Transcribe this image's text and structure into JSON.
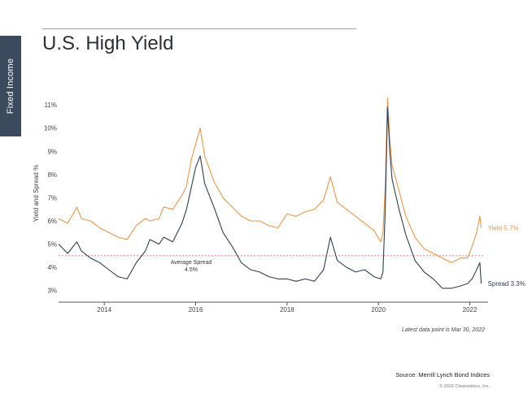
{
  "side_tab": {
    "label": "Fixed Income"
  },
  "title": "U.S. High Yield",
  "footer": {
    "note": "Latest data point is Mar 30, 2022",
    "source": "Source: Merrill Lynch Bond Indices",
    "copyright": "© 2022 Clearnomics, Inc."
  },
  "colors": {
    "yield": "#e8964a",
    "spread": "#2f3e51",
    "average": "#e05a5a"
  },
  "chart_data": {
    "type": "line",
    "title": "U.S. High Yield",
    "xlabel": "",
    "ylabel": "Yield and Spread %",
    "xlim": [
      2013.0,
      2022.4
    ],
    "ylim": [
      2.5,
      11.6
    ],
    "x_ticks": [
      {
        "x": 2014,
        "label": "2014"
      },
      {
        "x": 2016,
        "label": "2016"
      },
      {
        "x": 2018,
        "label": "2018"
      },
      {
        "x": 2020,
        "label": "2020"
      },
      {
        "x": 2022,
        "label": "2022"
      }
    ],
    "y_ticks": [
      {
        "y": 3,
        "label": "3%"
      },
      {
        "y": 4,
        "label": "4%"
      },
      {
        "y": 5,
        "label": "5%"
      },
      {
        "y": 6,
        "label": "6%"
      },
      {
        "y": 7,
        "label": "7%"
      },
      {
        "y": 8,
        "label": "8%"
      },
      {
        "y": 9,
        "label": "9%"
      },
      {
        "y": 10,
        "label": "10%"
      },
      {
        "y": 11,
        "label": "11%"
      }
    ],
    "reference_line": {
      "y": 4.5,
      "label_line1": "Average Spread",
      "label_line2": "4.5%"
    },
    "series": [
      {
        "name": "Yield",
        "end_label": "Yield 5.7%",
        "points": [
          [
            2013.0,
            6.1
          ],
          [
            2013.2,
            5.9
          ],
          [
            2013.4,
            6.6
          ],
          [
            2013.5,
            6.1
          ],
          [
            2013.7,
            6.0
          ],
          [
            2013.9,
            5.7
          ],
          [
            2014.1,
            5.5
          ],
          [
            2014.3,
            5.3
          ],
          [
            2014.5,
            5.2
          ],
          [
            2014.7,
            5.8
          ],
          [
            2014.9,
            6.1
          ],
          [
            2015.0,
            6.0
          ],
          [
            2015.2,
            6.1
          ],
          [
            2015.3,
            6.6
          ],
          [
            2015.5,
            6.5
          ],
          [
            2015.7,
            7.1
          ],
          [
            2015.8,
            7.5
          ],
          [
            2015.9,
            8.6
          ],
          [
            2016.0,
            9.3
          ],
          [
            2016.1,
            10.0
          ],
          [
            2016.2,
            8.8
          ],
          [
            2016.4,
            7.7
          ],
          [
            2016.6,
            7.0
          ],
          [
            2016.8,
            6.6
          ],
          [
            2017.0,
            6.2
          ],
          [
            2017.2,
            6.0
          ],
          [
            2017.4,
            6.0
          ],
          [
            2017.6,
            5.8
          ],
          [
            2017.8,
            5.7
          ],
          [
            2017.9,
            6.0
          ],
          [
            2018.0,
            6.3
          ],
          [
            2018.2,
            6.2
          ],
          [
            2018.4,
            6.4
          ],
          [
            2018.6,
            6.5
          ],
          [
            2018.8,
            6.9
          ],
          [
            2018.95,
            7.9
          ],
          [
            2019.1,
            6.8
          ],
          [
            2019.3,
            6.5
          ],
          [
            2019.5,
            6.2
          ],
          [
            2019.7,
            5.9
          ],
          [
            2019.9,
            5.6
          ],
          [
            2020.05,
            5.1
          ],
          [
            2020.1,
            5.5
          ],
          [
            2020.15,
            7.5
          ],
          [
            2020.2,
            11.3
          ],
          [
            2020.25,
            9.5
          ],
          [
            2020.3,
            8.4
          ],
          [
            2020.45,
            7.3
          ],
          [
            2020.6,
            6.2
          ],
          [
            2020.8,
            5.3
          ],
          [
            2021.0,
            4.8
          ],
          [
            2021.2,
            4.6
          ],
          [
            2021.4,
            4.4
          ],
          [
            2021.6,
            4.2
          ],
          [
            2021.8,
            4.4
          ],
          [
            2021.95,
            4.4
          ],
          [
            2022.05,
            4.9
          ],
          [
            2022.15,
            5.5
          ],
          [
            2022.22,
            6.2
          ],
          [
            2022.25,
            5.7
          ]
        ]
      },
      {
        "name": "Spread",
        "end_label": "Spread 3.3%",
        "points": [
          [
            2013.0,
            5.0
          ],
          [
            2013.2,
            4.6
          ],
          [
            2013.4,
            5.1
          ],
          [
            2013.5,
            4.7
          ],
          [
            2013.7,
            4.4
          ],
          [
            2013.9,
            4.2
          ],
          [
            2014.1,
            3.9
          ],
          [
            2014.3,
            3.6
          ],
          [
            2014.5,
            3.5
          ],
          [
            2014.7,
            4.2
          ],
          [
            2014.9,
            4.7
          ],
          [
            2015.0,
            5.2
          ],
          [
            2015.2,
            5.0
          ],
          [
            2015.3,
            5.3
          ],
          [
            2015.5,
            5.1
          ],
          [
            2015.7,
            5.9
          ],
          [
            2015.8,
            6.5
          ],
          [
            2015.9,
            7.4
          ],
          [
            2016.0,
            8.3
          ],
          [
            2016.1,
            8.8
          ],
          [
            2016.2,
            7.6
          ],
          [
            2016.4,
            6.6
          ],
          [
            2016.6,
            5.5
          ],
          [
            2016.8,
            4.9
          ],
          [
            2017.0,
            4.2
          ],
          [
            2017.2,
            3.9
          ],
          [
            2017.4,
            3.8
          ],
          [
            2017.6,
            3.6
          ],
          [
            2017.8,
            3.5
          ],
          [
            2017.9,
            3.5
          ],
          [
            2018.0,
            3.5
          ],
          [
            2018.2,
            3.4
          ],
          [
            2018.4,
            3.5
          ],
          [
            2018.6,
            3.4
          ],
          [
            2018.8,
            3.9
          ],
          [
            2018.95,
            5.3
          ],
          [
            2019.1,
            4.3
          ],
          [
            2019.3,
            4.0
          ],
          [
            2019.5,
            3.8
          ],
          [
            2019.7,
            3.9
          ],
          [
            2019.9,
            3.6
          ],
          [
            2020.05,
            3.5
          ],
          [
            2020.1,
            3.8
          ],
          [
            2020.15,
            6.5
          ],
          [
            2020.2,
            10.9
          ],
          [
            2020.25,
            9.0
          ],
          [
            2020.3,
            7.8
          ],
          [
            2020.45,
            6.5
          ],
          [
            2020.6,
            5.4
          ],
          [
            2020.8,
            4.3
          ],
          [
            2021.0,
            3.8
          ],
          [
            2021.2,
            3.5
          ],
          [
            2021.4,
            3.1
          ],
          [
            2021.6,
            3.1
          ],
          [
            2021.8,
            3.2
          ],
          [
            2021.95,
            3.3
          ],
          [
            2022.05,
            3.5
          ],
          [
            2022.15,
            3.9
          ],
          [
            2022.22,
            4.2
          ],
          [
            2022.25,
            3.3
          ]
        ]
      }
    ]
  }
}
